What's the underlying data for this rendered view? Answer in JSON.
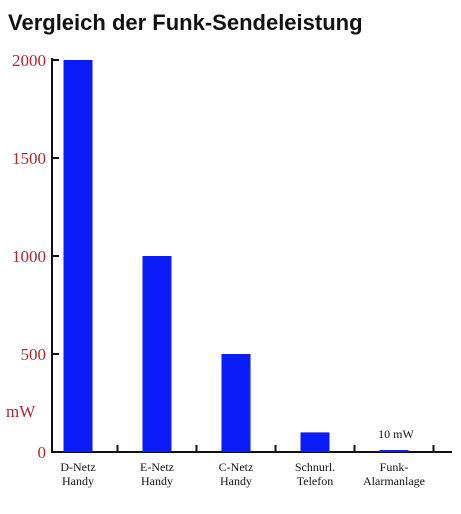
{
  "chart_data": {
    "type": "bar",
    "title": "Vergleich der Funk-Sendeleistung",
    "ylabel": "mW",
    "xlabel": "",
    "ylim": [
      0,
      2000
    ],
    "yticks": [
      "0",
      "500",
      "1000",
      "1500",
      "2000"
    ],
    "categories": [
      [
        "D-Netz",
        "Handy"
      ],
      [
        "E-Netz",
        "Handy"
      ],
      [
        "C-Netz",
        "Handy"
      ],
      [
        "Schnurl.",
        "Telefon"
      ],
      [
        "Funk-",
        "Alarmanlage"
      ]
    ],
    "values": [
      2000,
      1000,
      500,
      100,
      10
    ],
    "annotations": [
      {
        "category_index": 4,
        "text": "10 mW"
      }
    ],
    "bar_color": "#0a1cf7",
    "tick_color": "#b3262b",
    "grid": false,
    "legend": "none"
  }
}
